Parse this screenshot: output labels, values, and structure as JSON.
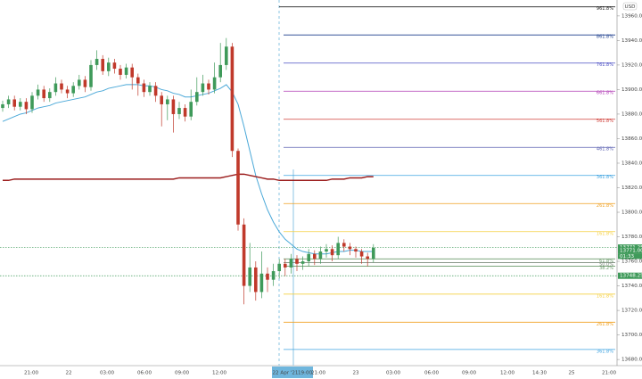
{
  "chart_data": {
    "type": "candlestick",
    "currency": "USD",
    "open": [
      13885,
      13888,
      13892,
      13886,
      13890,
      13884,
      13895,
      13900,
      13893,
      13898,
      13905,
      13900,
      13897,
      13903,
      13908,
      13902,
      13920,
      13925,
      13915,
      13922,
      13917,
      13912,
      13918,
      13910,
      13905,
      13898,
      13903,
      13895,
      13888,
      13892,
      13880,
      13885,
      13878,
      13890,
      13898,
      13905,
      13900,
      13910,
      13920,
      13935,
      13850,
      13790,
      13740,
      13755,
      13735,
      13750,
      13745,
      13752,
      13758,
      13755,
      13762,
      13758,
      13760,
      13766,
      13762,
      13768,
      13770,
      13765,
      13775,
      13772,
      13770,
      13768,
      13764,
      13762
    ],
    "high": [
      13891,
      13895,
      13895,
      13893,
      13893,
      13898,
      13904,
      13903,
      13901,
      13910,
      13908,
      13903,
      13906,
      13912,
      13911,
      13924,
      13932,
      13928,
      13926,
      13925,
      13920,
      13921,
      13921,
      13913,
      13908,
      13906,
      13906,
      13898,
      13895,
      13895,
      13890,
      13888,
      13900,
      13910,
      13912,
      13908,
      13922,
      13938,
      13942,
      13938,
      13852,
      13795,
      13775,
      13760,
      13768,
      13755,
      13758,
      13762,
      13762,
      13766,
      13765,
      13764,
      13770,
      13769,
      13772,
      13774,
      13773,
      13780,
      13778,
      13775,
      13772,
      13770,
      13767,
      13774
    ],
    "low": [
      13882,
      13885,
      13883,
      13883,
      13880,
      13881,
      13892,
      13890,
      13890,
      13895,
      13897,
      13893,
      13894,
      13900,
      13898,
      13899,
      13916,
      13912,
      13911,
      13913,
      13908,
      13909,
      13900,
      13895,
      13894,
      13895,
      13890,
      13870,
      13875,
      13865,
      13876,
      13874,
      13875,
      13887,
      13895,
      13896,
      13897,
      13906,
      13916,
      13845,
      13785,
      13725,
      13735,
      13728,
      13730,
      13735,
      13740,
      13746,
      13748,
      13750,
      13752,
      13753,
      13756,
      13757,
      13758,
      13763,
      13760,
      13762,
      13768,
      13765,
      13763,
      13758,
      13756,
      13759
    ],
    "close": [
      13888,
      13892,
      13886,
      13890,
      13884,
      13895,
      13900,
      13893,
      13898,
      13905,
      13900,
      13897,
      13903,
      13908,
      13902,
      13920,
      13925,
      13915,
      13922,
      13917,
      13912,
      13918,
      13910,
      13905,
      13898,
      13903,
      13895,
      13888,
      13892,
      13880,
      13885,
      13878,
      13890,
      13898,
      13905,
      13900,
      13910,
      13920,
      13935,
      13850,
      13790,
      13740,
      13755,
      13735,
      13750,
      13745,
      13752,
      13758,
      13755,
      13762,
      13758,
      13760,
      13766,
      13762,
      13768,
      13770,
      13765,
      13775,
      13772,
      13770,
      13768,
      13764,
      13762,
      13771
    ],
    "up_color": "#3f9a5a",
    "down_color": "#c0392b",
    "series": [
      {
        "color": "#4aa8d8",
        "values": [
          13874,
          13876,
          13878,
          13880,
          13881,
          13883,
          13885,
          13886,
          13887,
          13889,
          13890,
          13891,
          13892,
          13893,
          13894,
          13896,
          13898,
          13899,
          13901,
          13902,
          13903,
          13904,
          13904,
          13904,
          13903,
          13903,
          13902,
          13900,
          13899,
          13897,
          13896,
          13894,
          13894,
          13895,
          13896,
          13897,
          13899,
          13901,
          13904,
          13898,
          13888,
          13870,
          13850,
          13830,
          13815,
          13802,
          13792,
          13784,
          13778,
          13774,
          13770,
          13768,
          13767,
          13766,
          13766,
          13766,
          13767,
          13768,
          13768,
          13769,
          13769,
          13768,
          13768,
          13768
        ]
      },
      {
        "color": "#9b1c1c",
        "values": [
          13826,
          13826,
          13827,
          13827,
          13827,
          13827,
          13827,
          13827,
          13827,
          13827,
          13827,
          13827,
          13827,
          13827,
          13827,
          13827,
          13827,
          13827,
          13827,
          13827,
          13827,
          13827,
          13827,
          13827,
          13827,
          13827,
          13827,
          13827,
          13827,
          13827,
          13828,
          13828,
          13828,
          13828,
          13828,
          13828,
          13828,
          13828,
          13829,
          13830,
          13831,
          13831,
          13830,
          13829,
          13828,
          13827,
          13827,
          13826,
          13826,
          13826,
          13826,
          13826,
          13826,
          13826,
          13826,
          13826,
          13827,
          13827,
          13827,
          13828,
          13828,
          13828,
          13829,
          13829
        ]
      }
    ],
    "fib_levels": [
      {
        "label": "961.8%",
        "value": 13967.4,
        "color": "#222222"
      },
      {
        "label": "861.8%",
        "value": 13944.5,
        "color": "#1a3c8c"
      },
      {
        "label": "761.8%",
        "value": 13921.6,
        "color": "#4b4fc4"
      },
      {
        "label": "661.8%",
        "value": 13898.7,
        "color": "#b03ab5"
      },
      {
        "label": "561.8%",
        "value": 13875.8,
        "color": "#d0403a"
      },
      {
        "label": "461.8%",
        "value": 13852.9,
        "color": "#5a5fb0"
      },
      {
        "label": "361.8%",
        "value": 13830,
        "color": "#3fa3e0"
      },
      {
        "label": "261.8%",
        "value": 13807.1,
        "color": "#f0a020"
      },
      {
        "label": "161.8%",
        "value": 13784.2,
        "color": "#f5d040"
      },
      {
        "label": "61.8%",
        "value": 13762,
        "color": "#6a9a6a"
      },
      {
        "label": "50.0%",
        "value": 13759,
        "color": "#7a8a7a"
      },
      {
        "label": "38.2%",
        "value": 13756,
        "color": "#6a9a6a"
      },
      {
        "label": "161.8%",
        "value": 13733.3,
        "color": "#f5d040"
      },
      {
        "label": "261.8%",
        "value": 13710.4,
        "color": "#f0a020"
      },
      {
        "label": "361.8%",
        "value": 13688.2,
        "color": "#3fa3e0"
      }
    ],
    "price_tags": [
      {
        "value": 13771.25,
        "label": "13771.25",
        "color": "#3f9a5a"
      },
      {
        "value": 13771,
        "label": "13771.00",
        "color": "#3f9a5a"
      },
      {
        "value": 13748.25,
        "label": "13748.25",
        "color": "#3f9a5a"
      }
    ],
    "countdown": "01:33",
    "ylim": [
      13675,
      13973
    ],
    "yticks": [
      {
        "value": 13680,
        "label": "13680.00"
      },
      {
        "value": 13700,
        "label": "13700.00"
      },
      {
        "value": 13720,
        "label": "13720.00"
      },
      {
        "value": 13740,
        "label": "13740.00"
      },
      {
        "value": 13760,
        "label": "13760.00"
      },
      {
        "value": 13780,
        "label": "13780.00"
      },
      {
        "value": 13800,
        "label": "13800.00"
      },
      {
        "value": 13820,
        "label": "13820.00"
      },
      {
        "value": 13840,
        "label": "13840.00"
      },
      {
        "value": 13860,
        "label": "13860.00"
      },
      {
        "value": 13880,
        "label": "13880.00"
      },
      {
        "value": 13900,
        "label": "13900.00"
      },
      {
        "value": 13920,
        "label": "13920.00"
      },
      {
        "value": 13940,
        "label": "13940.00"
      },
      {
        "value": 13960,
        "label": "13960.00"
      }
    ],
    "xtick_labels": [
      "21:00",
      "22",
      "03:00",
      "06:00",
      "09:00",
      "12:00",
      "22 Apr '21",
      "19:00",
      "21:00",
      "23",
      "03:00",
      "06:00",
      "09:00",
      "12:00",
      "14:30",
      "25",
      "21:00"
    ]
  }
}
